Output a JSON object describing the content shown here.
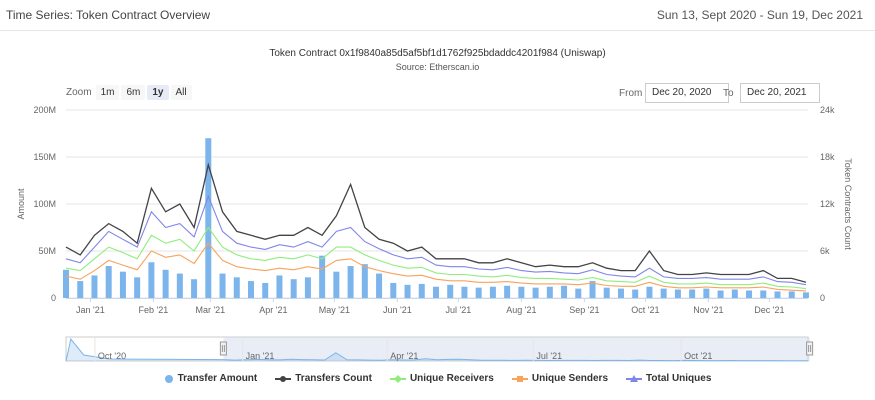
{
  "header": {
    "title": "Time Series: Token Contract Overview",
    "date_range": "Sun 13, Sept 2020 - Sun 19, Dec 2021"
  },
  "chart_title": "Token Contract 0x1f9840a85d5af5bf1d1762f925bdaddc4201f984 (Uniswap)",
  "chart_subtitle": "Source: Etherscan.io",
  "zoom": {
    "label": "Zoom",
    "buttons": [
      "1m",
      "6m",
      "1y",
      "All"
    ],
    "active": "1y"
  },
  "range_selector": {
    "from_label": "From",
    "from_value": "Dec 20, 2020",
    "to_label": "To",
    "to_value": "Dec 20, 2021"
  },
  "colors": {
    "transfer_amount": "#7cb5ec",
    "transfers_count": "#434348",
    "unique_receivers": "#90ed7d",
    "unique_senders": "#f7a35c",
    "total_uniques": "#8085e9",
    "navigator_mask": "#ccd6eb"
  },
  "legend": [
    {
      "name": "Transfer Amount",
      "color": "#7cb5ec",
      "marker": "circle"
    },
    {
      "name": "Transfers Count",
      "color": "#434348",
      "marker": "line-dot"
    },
    {
      "name": "Unique Receivers",
      "color": "#90ed7d",
      "marker": "line-diamond"
    },
    {
      "name": "Unique Senders",
      "color": "#f7a35c",
      "marker": "line-square"
    },
    {
      "name": "Total Uniques",
      "color": "#8085e9",
      "marker": "line-triangle"
    }
  ],
  "chart_data": {
    "type": "line",
    "title": "Token Contract 0x1f9840a85d5af5bf1d1762f925bdaddc4201f984 (Uniswap)",
    "subtitle": "Source: Etherscan.io",
    "x_ticks": [
      "Jan '21",
      "Feb '21",
      "Mar '21",
      "Apr '21",
      "May '21",
      "Jun '21",
      "Jul '21",
      "Aug '21",
      "Sep '21",
      "Oct '21",
      "Nov '21",
      "Dec '21"
    ],
    "x_range": [
      "2020-12-20",
      "2021-12-20"
    ],
    "y_left": {
      "label": "Amount",
      "ticks": [
        "0",
        "50M",
        "100M",
        "150M",
        "200M"
      ],
      "range": [
        0,
        200000000
      ]
    },
    "y_right": {
      "label": "Token Contracts Count",
      "ticks": [
        "0",
        "6k",
        "12k",
        "18k",
        "24k"
      ],
      "range": [
        0,
        24000
      ]
    },
    "weeks": [
      "2020-12-20",
      "2020-12-27",
      "2021-01-03",
      "2021-01-10",
      "2021-01-17",
      "2021-01-24",
      "2021-01-31",
      "2021-02-07",
      "2021-02-14",
      "2021-02-21",
      "2021-02-28",
      "2021-03-07",
      "2021-03-14",
      "2021-03-21",
      "2021-03-28",
      "2021-04-04",
      "2021-04-11",
      "2021-04-18",
      "2021-04-25",
      "2021-05-02",
      "2021-05-09",
      "2021-05-16",
      "2021-05-23",
      "2021-05-30",
      "2021-06-06",
      "2021-06-13",
      "2021-06-20",
      "2021-06-27",
      "2021-07-04",
      "2021-07-11",
      "2021-07-18",
      "2021-07-25",
      "2021-08-01",
      "2021-08-08",
      "2021-08-15",
      "2021-08-22",
      "2021-08-29",
      "2021-09-05",
      "2021-09-12",
      "2021-09-19",
      "2021-09-26",
      "2021-10-03",
      "2021-10-10",
      "2021-10-17",
      "2021-10-24",
      "2021-10-31",
      "2021-11-07",
      "2021-11-14",
      "2021-11-21",
      "2021-11-28",
      "2021-12-05",
      "2021-12-12",
      "2021-12-19"
    ],
    "series": [
      {
        "name": "Transfer Amount",
        "axis": "left",
        "type": "column",
        "values": [
          30000000,
          18000000,
          24000000,
          34000000,
          28000000,
          22000000,
          38000000,
          30000000,
          26000000,
          20000000,
          170000000,
          26000000,
          22000000,
          18000000,
          16000000,
          24000000,
          20000000,
          22000000,
          45000000,
          28000000,
          34000000,
          36000000,
          26000000,
          16000000,
          14000000,
          15000000,
          12000000,
          14000000,
          12000000,
          11000000,
          12000000,
          13000000,
          12000000,
          11000000,
          12000000,
          13000000,
          10000000,
          18000000,
          11000000,
          10000000,
          9000000,
          12000000,
          10000000,
          9000000,
          9000000,
          10000000,
          8000000,
          9000000,
          8000000,
          8000000,
          7000000,
          7000000,
          6000000
        ]
      },
      {
        "name": "Transfers Count",
        "axis": "right",
        "type": "line",
        "values": [
          6500,
          5500,
          8000,
          9500,
          8500,
          7000,
          14000,
          11000,
          12000,
          9000,
          17000,
          11000,
          8500,
          8000,
          7500,
          8000,
          8000,
          9000,
          8000,
          10500,
          14500,
          9000,
          7500,
          7000,
          6000,
          6500,
          5000,
          5000,
          5000,
          4500,
          4500,
          5000,
          4500,
          4000,
          4200,
          4000,
          4000,
          4500,
          3800,
          3500,
          3500,
          6000,
          3500,
          3000,
          3000,
          3200,
          3000,
          3000,
          3000,
          3500,
          2500,
          2500,
          2000
        ]
      },
      {
        "name": "Unique Receivers",
        "axis": "right",
        "type": "line",
        "values": [
          3800,
          3500,
          5000,
          6500,
          5800,
          5000,
          8000,
          7000,
          7500,
          6000,
          9000,
          6500,
          5500,
          5000,
          4800,
          5200,
          5000,
          5500,
          5000,
          6500,
          6500,
          5500,
          4800,
          4200,
          3800,
          3900,
          3200,
          3000,
          3000,
          2800,
          2700,
          2900,
          2600,
          2500,
          2500,
          2400,
          2300,
          2600,
          2200,
          2100,
          2000,
          2800,
          2000,
          1800,
          1800,
          1900,
          1700,
          1700,
          1700,
          1900,
          1500,
          1400,
          1200
        ]
      },
      {
        "name": "Unique Senders",
        "axis": "right",
        "type": "line",
        "values": [
          2800,
          2400,
          3500,
          4800,
          4200,
          3600,
          6000,
          5200,
          5500,
          4400,
          7000,
          4800,
          4000,
          3700,
          3500,
          3800,
          3600,
          4000,
          3700,
          4800,
          5000,
          4000,
          3500,
          3100,
          2800,
          2900,
          2400,
          2200,
          2200,
          2000,
          2000,
          2100,
          1900,
          1800,
          1800,
          1800,
          1700,
          1900,
          1600,
          1500,
          1500,
          2000,
          1500,
          1300,
          1300,
          1400,
          1300,
          1300,
          1300,
          1400,
          1100,
          1000,
          900
        ]
      },
      {
        "name": "Total Uniques",
        "axis": "right",
        "type": "line",
        "values": [
          5000,
          4500,
          6500,
          8500,
          7500,
          6500,
          11000,
          9000,
          9500,
          7800,
          13000,
          8500,
          7000,
          6500,
          6200,
          6800,
          6500,
          7200,
          6500,
          8500,
          9000,
          7200,
          6300,
          5500,
          5000,
          5200,
          4200,
          4000,
          4000,
          3700,
          3600,
          3900,
          3500,
          3300,
          3400,
          3200,
          3100,
          3600,
          3000,
          2800,
          2700,
          3800,
          2700,
          2500,
          2500,
          2600,
          2400,
          2400,
          2400,
          2700,
          2100,
          2000,
          1700
        ]
      }
    ],
    "grid": true,
    "legend_position": "bottom"
  },
  "navigator": {
    "ticks": [
      "Oct '20",
      "Jan '21",
      "Apr '21",
      "Jul '21",
      "Oct '21"
    ],
    "selected_from": "2020-12-20",
    "selected_to": "2021-12-20"
  }
}
